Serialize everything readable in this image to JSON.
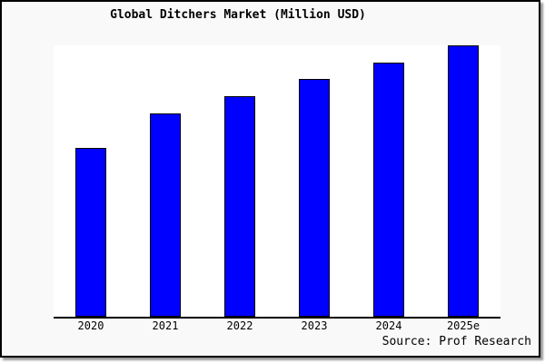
{
  "page": {
    "background_color": "#ffffff"
  },
  "figure": {
    "background_color": "#f9f9f9",
    "border_color": "#000000",
    "shadow_color": "#999999"
  },
  "chart_data": {
    "type": "bar",
    "title": "Global Ditchers Market (Million USD)",
    "categories": [
      "2020",
      "2021",
      "2022",
      "2023",
      "2024",
      "2025e"
    ],
    "values": [
      186,
      224,
      243,
      262,
      280,
      299
    ],
    "values_unit": "bar height in screen pixels (chart displays no y-axis scale or gridlines)",
    "values_relative_pct_of_2025e": [
      62.2,
      74.9,
      81.3,
      87.6,
      93.6,
      100
    ],
    "xlabel": "",
    "ylabel": "",
    "y_axis_shown": false,
    "grid": false,
    "legend": "none",
    "bar_color": "#0000ff",
    "bar_border_color": "#000000",
    "plot_background": "#ffffff",
    "axis_line_color": "#000000",
    "source_note": "Source: Prof Research"
  }
}
